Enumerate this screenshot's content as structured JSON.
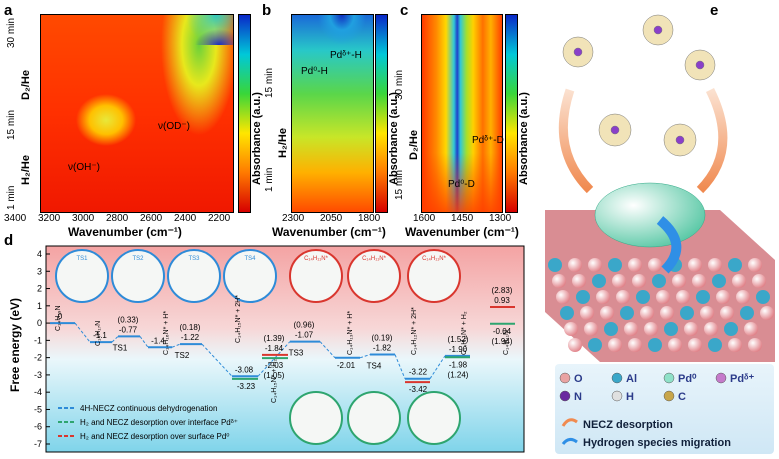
{
  "panels": {
    "a": "a",
    "b": "b",
    "c": "c",
    "d": "d",
    "e": "e"
  },
  "panel_a": {
    "xlabel": "Wavenumber (cm⁻¹)",
    "xticks": [
      "3400",
      "3200",
      "3000",
      "2800",
      "2600",
      "2400",
      "2200"
    ],
    "ylabel_top": "D₂/He",
    "ylabel_bottom": "H₂/He",
    "yticks": [
      "1 min",
      "15 min",
      "30 min"
    ],
    "annot_oh": "ν(OH⁻)",
    "annot_od": "ν(OD⁻)",
    "cbar_label": "Absorbance (a.u.)"
  },
  "panel_b": {
    "xlabel": "Wavenumber (cm⁻¹)",
    "xticks": [
      "2300",
      "2050",
      "1800"
    ],
    "ylabel": "H₂/He",
    "yticks": [
      "1 min",
      "15 min"
    ],
    "annot_pd0": "Pd⁰-H",
    "annot_pdd": "Pdᵟ⁺-H",
    "cbar_label": "Absorbance (a.u.)"
  },
  "panel_c": {
    "xlabel": "Wavenumber (cm⁻¹)",
    "xticks": [
      "1600",
      "1450",
      "1300"
    ],
    "ylabel": "D₂/He",
    "yticks": [
      "15 min",
      "30 min"
    ],
    "annot_pd0": "Pd⁰-D",
    "annot_pdd": "Pdᵟ⁺-D",
    "cbar_label": "Absorbance (a.u.)"
  },
  "panel_d": {
    "ylabel": "Free energy (eV)",
    "yticks": [
      "4",
      "3",
      "2",
      "1",
      "0",
      "-1",
      "-2",
      "-3",
      "-4",
      "-5",
      "-6",
      "-7"
    ],
    "ts_labels": [
      "TS1",
      "TS2",
      "TS3",
      "TS4"
    ],
    "level_labels": [
      "0",
      "-1.1",
      "(0.33)",
      "-0.77",
      "-1.4",
      "(0.18)",
      "-1.22",
      "-3.08",
      "-3.23",
      "(1.39)",
      "-1.84",
      "-2.03",
      "(1.05)",
      "(0.96)",
      "-1.07",
      "-2.01",
      "(0.19)",
      "-1.82",
      "-3.22",
      "-3.42",
      "(1.52)",
      "-1.90",
      "-1.98",
      "(1.24)",
      "(2.83)",
      "0.93",
      "-0.04",
      "(1.94)"
    ],
    "species": [
      "C₁₄H₁₉N",
      "C₁₄H₁₇N",
      "C₁₄H₁₆N* + H*",
      "C₁₄H₁₅N* + 2H*",
      "C₁₄H₁₅N* + H₂",
      "C₁₄H₁₃N* + H*",
      "C₁₄H₁₂N* + 2H*",
      "C₁₄H₁₁N* + H₂",
      "C₁₄H₁₁N"
    ],
    "legend": [
      "4H-NECZ continuous dehydrogenation",
      "H₂ and NECZ desorption over interface Pdᵟ⁺",
      "H₂ and NECZ desorption over surface Pd⁰"
    ],
    "ts_circle_labels": [
      "TS1",
      "TS2",
      "TS3",
      "TS4",
      "C₁₄H₁₁N*",
      "C₁₄H₁₁N*",
      "C₁₄H₁₁N*"
    ],
    "colors": {
      "blue": "#2e8bd8",
      "green": "#2ea56f",
      "red": "#d9362e"
    }
  },
  "chart_data": {
    "type": "line",
    "title": "",
    "xlabel": "",
    "ylabel": "Free energy (eV)",
    "ylim": [
      -7,
      4
    ],
    "series": [
      {
        "name": "4H-NECZ continuous dehydrogenation",
        "values": [
          0,
          -1.1,
          -0.77,
          -1.4,
          -1.22,
          -3.08,
          -1.07,
          -2.01,
          -1.82,
          -3.22,
          -1.9
        ]
      },
      {
        "name": "H₂ and NECZ desorption over interface Pdᵟ⁺",
        "values": [
          -3.23,
          -2.03,
          -1.98,
          -0.04
        ]
      },
      {
        "name": "H₂ and NECZ desorption over surface Pd⁰",
        "values": [
          -1.84,
          -3.42,
          0.93
        ]
      }
    ]
  },
  "panel_e": {
    "legend_items": [
      "O",
      "Al",
      "Pd⁰",
      "Pdᵟ⁺",
      "N",
      "H",
      "C"
    ],
    "legend_colors": [
      "#e9a3a3",
      "#3aa7c9",
      "#8fe1c8",
      "#c57acb",
      "#6a2aa0",
      "#e0e0e0",
      "#c8a64b"
    ],
    "desorption": "NECZ desorption",
    "migration": "Hydrogen species migration"
  }
}
